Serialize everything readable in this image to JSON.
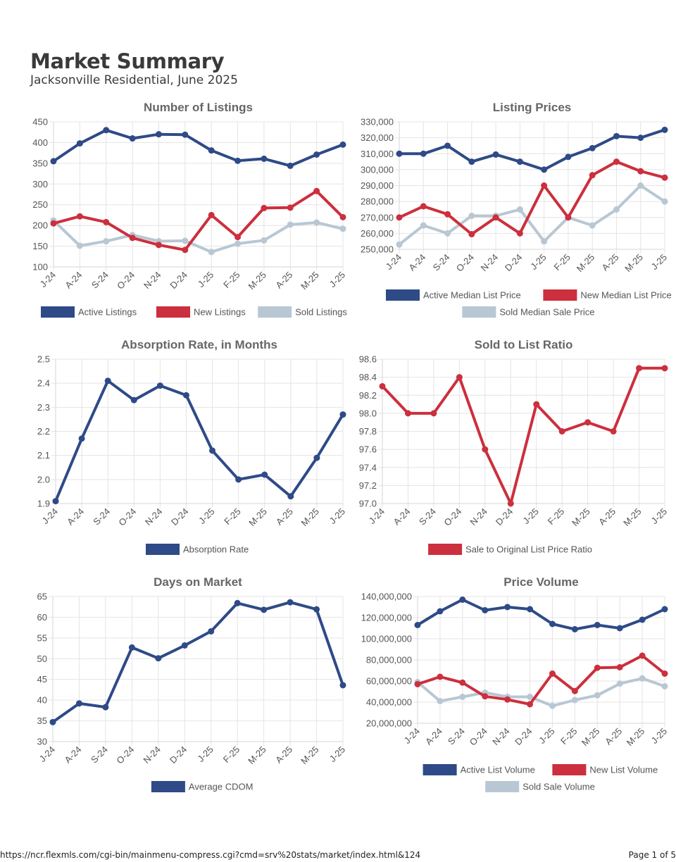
{
  "page": {
    "title": "Market Summary",
    "subtitle": "Jacksonville Residential, June 2025",
    "footer_url": "https://ncr.flexmls.com/cgi-bin/mainmenu-compress.cgi?cmd=srv%20stats/market/index.html&124",
    "footer_page": "Page 1 of 5"
  },
  "colors": {
    "active": "#2e4a87",
    "new": "#cc2f3d",
    "sold": "#b8c7d3"
  },
  "chart_data": [
    {
      "id": "listings",
      "type": "line",
      "title": "Number of Listings",
      "categories": [
        "J-24",
        "A-24",
        "S-24",
        "O-24",
        "N-24",
        "D-24",
        "J-25",
        "F-25",
        "M-25",
        "A-25",
        "M-25",
        "J-25"
      ],
      "ylim": [
        100,
        450
      ],
      "yticks": [
        {
          "v": 100,
          "label": "100"
        },
        {
          "v": 150,
          "label": "150"
        },
        {
          "v": 200,
          "label": "200"
        },
        {
          "v": 250,
          "label": "250"
        },
        {
          "v": 300,
          "label": "300"
        },
        {
          "v": 350,
          "label": "350"
        },
        {
          "v": 400,
          "label": "400"
        },
        {
          "v": 450,
          "label": "450"
        }
      ],
      "series": [
        {
          "name": "Active Listings",
          "color": "active",
          "values": [
            355,
            398,
            430,
            410,
            420,
            419,
            381,
            356,
            361,
            344,
            371,
            395
          ]
        },
        {
          "name": "New Listings",
          "color": "new",
          "values": [
            205,
            222,
            208,
            170,
            153,
            141,
            225,
            172,
            242,
            243,
            283,
            220
          ]
        },
        {
          "name": "Sold Listings",
          "color": "sold",
          "values": [
            212,
            151,
            162,
            177,
            162,
            163,
            136,
            156,
            164,
            202,
            207,
            192
          ]
        }
      ],
      "legend_rows": [
        [
          0,
          1,
          2
        ]
      ]
    },
    {
      "id": "prices",
      "type": "line",
      "title": "Listing Prices",
      "categories": [
        "J-24",
        "A-24",
        "S-24",
        "O-24",
        "N-24",
        "D-24",
        "J-25",
        "F-25",
        "M-25",
        "A-25",
        "M-25",
        "J-25"
      ],
      "ylim": [
        250000,
        330000
      ],
      "yticks": [
        {
          "v": 250000,
          "label": "250,000"
        },
        {
          "v": 260000,
          "label": "260,000"
        },
        {
          "v": 270000,
          "label": "270,000"
        },
        {
          "v": 280000,
          "label": "280,000"
        },
        {
          "v": 290000,
          "label": "290,000"
        },
        {
          "v": 300000,
          "label": "300,000"
        },
        {
          "v": 310000,
          "label": "310,000"
        },
        {
          "v": 320000,
          "label": "320,000"
        },
        {
          "v": 330000,
          "label": "330,000"
        }
      ],
      "series": [
        {
          "name": "Active Median List Price",
          "color": "active",
          "values": [
            310000,
            310000,
            315000,
            305000,
            309500,
            305000,
            300000,
            308000,
            313500,
            321000,
            320000,
            325000
          ]
        },
        {
          "name": "New Median List Price",
          "color": "new",
          "values": [
            270000,
            277000,
            272000,
            259500,
            270000,
            260000,
            290000,
            270000,
            296500,
            305000,
            299000,
            295000
          ]
        },
        {
          "name": "Sold Median Sale Price",
          "color": "sold",
          "values": [
            253000,
            265000,
            260000,
            271000,
            271000,
            275000,
            255000,
            270000,
            265000,
            275000,
            290000,
            280000
          ]
        }
      ],
      "legend_rows": [
        [
          0,
          1
        ],
        [
          2
        ]
      ]
    },
    {
      "id": "absorption",
      "type": "line",
      "title": "Absorption Rate, in Months",
      "categories": [
        "J-24",
        "A-24",
        "S-24",
        "O-24",
        "N-24",
        "D-24",
        "J-25",
        "F-25",
        "M-25",
        "A-25",
        "M-25",
        "J-25"
      ],
      "ylim": [
        1.9,
        2.5
      ],
      "yticks": [
        {
          "v": 1.9,
          "label": "1.9"
        },
        {
          "v": 2.0,
          "label": "2.0"
        },
        {
          "v": 2.1,
          "label": "2.1"
        },
        {
          "v": 2.2,
          "label": "2.2"
        },
        {
          "v": 2.3,
          "label": "2.3"
        },
        {
          "v": 2.4,
          "label": "2.4"
        },
        {
          "v": 2.5,
          "label": "2.5"
        }
      ],
      "series": [
        {
          "name": "Absorption Rate",
          "color": "active",
          "values": [
            1.91,
            2.17,
            2.41,
            2.33,
            2.39,
            2.35,
            2.12,
            2.0,
            2.02,
            1.93,
            2.09,
            2.27
          ]
        }
      ],
      "legend_rows": [
        [
          0
        ]
      ]
    },
    {
      "id": "ratio",
      "type": "line",
      "title": "Sold to List Ratio",
      "categories": [
        "J-24",
        "A-24",
        "S-24",
        "O-24",
        "N-24",
        "D-24",
        "J-25",
        "F-25",
        "M-25",
        "A-25",
        "M-25",
        "J-25"
      ],
      "ylim": [
        97.0,
        98.6
      ],
      "yticks": [
        {
          "v": 97.0,
          "label": "97.0"
        },
        {
          "v": 97.2,
          "label": "97.2"
        },
        {
          "v": 97.4,
          "label": "97.4"
        },
        {
          "v": 97.6,
          "label": "97.6"
        },
        {
          "v": 97.8,
          "label": "97.8"
        },
        {
          "v": 98.0,
          "label": "98.0"
        },
        {
          "v": 98.2,
          "label": "98.2"
        },
        {
          "v": 98.4,
          "label": "98.4"
        },
        {
          "v": 98.6,
          "label": "98.6"
        }
      ],
      "series": [
        {
          "name": "Sale to Original List Price Ratio",
          "color": "new",
          "values": [
            98.3,
            98.0,
            98.0,
            98.4,
            97.6,
            97.0,
            98.1,
            97.8,
            97.9,
            97.8,
            98.5,
            98.5
          ]
        }
      ],
      "legend_rows": [
        [
          0
        ]
      ]
    },
    {
      "id": "dom",
      "type": "line",
      "title": "Days on Market",
      "categories": [
        "J-24",
        "A-24",
        "S-24",
        "O-24",
        "N-24",
        "D-24",
        "J-25",
        "F-25",
        "M-25",
        "A-25",
        "M-25",
        "J-25"
      ],
      "ylim": [
        30,
        65
      ],
      "yticks": [
        {
          "v": 30,
          "label": "30"
        },
        {
          "v": 35,
          "label": "35"
        },
        {
          "v": 40,
          "label": "40"
        },
        {
          "v": 45,
          "label": "45"
        },
        {
          "v": 50,
          "label": "50"
        },
        {
          "v": 55,
          "label": "55"
        },
        {
          "v": 60,
          "label": "60"
        },
        {
          "v": 65,
          "label": "65"
        }
      ],
      "series": [
        {
          "name": "Average CDOM",
          "color": "active",
          "values": [
            34.7,
            39.2,
            38.3,
            52.7,
            50.1,
            53.2,
            56.6,
            63.4,
            61.8,
            63.6,
            61.9,
            43.6
          ]
        }
      ],
      "legend_rows": [
        [
          0
        ]
      ]
    },
    {
      "id": "volume",
      "type": "line",
      "title": "Price Volume",
      "categories": [
        "J-24",
        "A-24",
        "S-24",
        "O-24",
        "N-24",
        "D-24",
        "J-25",
        "F-25",
        "M-25",
        "A-25",
        "M-25",
        "J-25"
      ],
      "ylim": [
        20000000,
        140000000
      ],
      "yticks": [
        {
          "v": 20000000,
          "label": "20,000,000"
        },
        {
          "v": 40000000,
          "label": "40,000,000"
        },
        {
          "v": 60000000,
          "label": "60,000,000"
        },
        {
          "v": 80000000,
          "label": "80,000,000"
        },
        {
          "v": 100000000,
          "label": "100,000,000"
        },
        {
          "v": 120000000,
          "label": "120,000,000"
        },
        {
          "v": 140000000,
          "label": "140,000,000"
        }
      ],
      "series": [
        {
          "name": "Active List Volume",
          "color": "active",
          "values": [
            113000000,
            126000000,
            137000000,
            127000000,
            130000000,
            128000000,
            114000000,
            109000000,
            113000000,
            110000000,
            118000000,
            128000000
          ]
        },
        {
          "name": "New List Volume",
          "color": "new",
          "values": [
            57000000,
            64000000,
            58500000,
            45500000,
            42500000,
            38000000,
            67000000,
            50500000,
            72500000,
            73000000,
            84000000,
            67000000
          ]
        },
        {
          "name": "Sold Sale Volume",
          "color": "sold",
          "values": [
            59000000,
            41000000,
            45000000,
            49000000,
            45000000,
            45000000,
            36500000,
            42000000,
            46500000,
            57500000,
            62500000,
            55000000
          ]
        }
      ],
      "legend_rows": [
        [
          0,
          1
        ],
        [
          2
        ]
      ]
    }
  ]
}
